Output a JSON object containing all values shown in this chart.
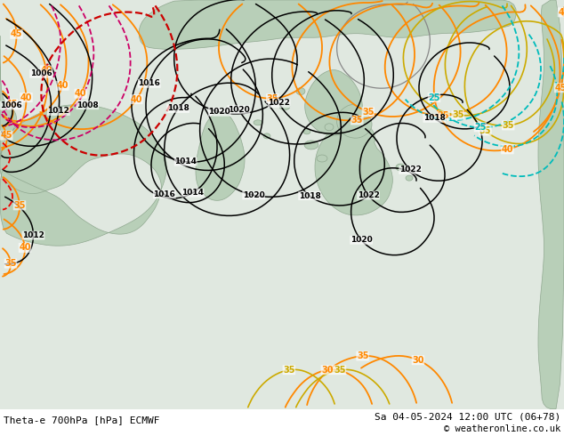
{
  "label_left": "Theta-e 700hPa [hPa] ECMWF",
  "label_right": "Sa 04-05-2024 12:00 UTC (06+78)",
  "label_copy": "© weatheronline.co.uk"
}
